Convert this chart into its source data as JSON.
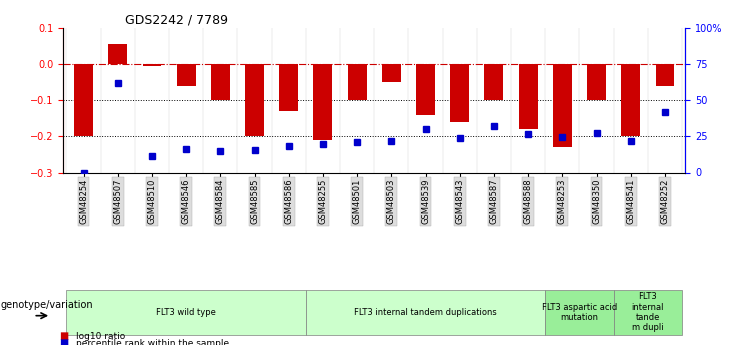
{
  "title": "GDS2242 / 7789",
  "samples": [
    "GSM48254",
    "GSM48507",
    "GSM48510",
    "GSM48546",
    "GSM48584",
    "GSM48585",
    "GSM48586",
    "GSM48255",
    "GSM48501",
    "GSM48503",
    "GSM48539",
    "GSM48543",
    "GSM48587",
    "GSM48588",
    "GSM48253",
    "GSM48350",
    "GSM48541",
    "GSM48252"
  ],
  "log10_ratio": [
    -0.2,
    0.055,
    -0.005,
    -0.06,
    -0.1,
    -0.2,
    -0.13,
    -0.21,
    -0.1,
    -0.05,
    -0.14,
    -0.16,
    -0.1,
    -0.18,
    -0.23,
    -0.1,
    -0.2,
    -0.06
  ],
  "percentile_rank": [
    0.0,
    62.0,
    11.5,
    16.5,
    14.5,
    15.5,
    18.0,
    19.5,
    21.0,
    22.0,
    30.0,
    24.0,
    32.0,
    26.5,
    24.5,
    27.0,
    21.5,
    42.0
  ],
  "groups": [
    {
      "label": "FLT3 wild type",
      "start": 0,
      "end": 7,
      "color": "#ccffcc"
    },
    {
      "label": "FLT3 internal tandem duplications",
      "start": 7,
      "end": 14,
      "color": "#ccffcc"
    },
    {
      "label": "FLT3 aspartic acid\nmutation",
      "start": 14,
      "end": 16,
      "color": "#99ee99"
    },
    {
      "label": "FLT3\ninternal\ntande\nm dupli",
      "start": 16,
      "end": 18,
      "color": "#99ee99"
    }
  ],
  "ylim_left": [
    -0.3,
    0.1
  ],
  "ylim_right": [
    0,
    100
  ],
  "left_yticks": [
    -0.3,
    -0.2,
    -0.1,
    0.0,
    0.1
  ],
  "right_yticks": [
    0,
    25,
    50,
    75,
    100
  ],
  "bar_color": "#cc0000",
  "dot_color": "#0000cc",
  "hline_color": "#cc0000",
  "dotline_color": "black",
  "background_color": "#ffffff",
  "legend_bar_label": "log10 ratio",
  "legend_dot_label": "percentile rank within the sample",
  "genotype_label": "genotype/variation"
}
